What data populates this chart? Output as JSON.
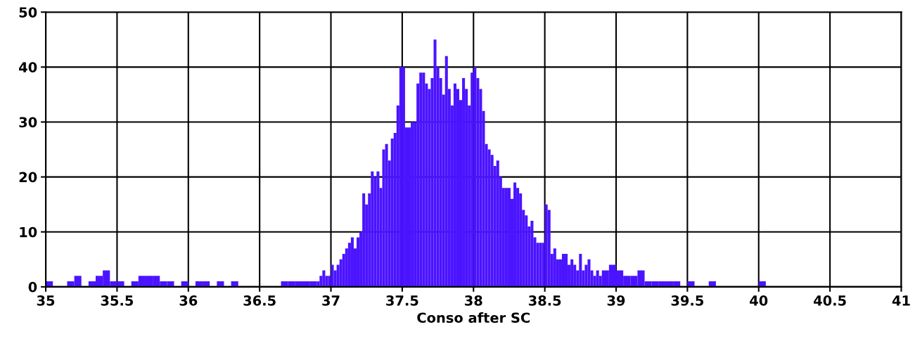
{
  "chart_data": {
    "type": "histogram",
    "xlabel": "Conso after SC",
    "color": "#4b14ff",
    "bins": [
      35,
      35.05,
      35.15,
      35.2,
      35.25,
      35.3,
      35.35,
      35.4,
      35.45,
      35.5,
      35.55,
      35.6,
      35.65,
      35.7,
      35.75,
      35.8,
      35.85,
      35.9,
      35.95,
      36,
      36.05,
      36.1,
      36.15,
      36.2,
      36.25,
      36.3,
      36.35,
      36.65,
      36.7,
      36.75,
      36.8,
      36.85,
      36.9,
      36.92,
      36.94,
      36.96,
      36.98,
      37,
      37.02,
      37.04,
      37.06,
      37.08,
      37.1,
      37.12,
      37.14,
      37.16,
      37.18,
      37.2,
      37.22,
      37.24,
      37.26,
      37.28,
      37.3,
      37.32,
      37.34,
      37.36,
      37.38,
      37.4,
      37.42,
      37.44,
      37.46,
      37.48,
      37.5,
      37.52,
      37.54,
      37.56,
      37.58,
      37.6,
      37.62,
      37.64,
      37.66,
      37.68,
      37.7,
      37.72,
      37.74,
      37.76,
      37.78,
      37.8,
      37.82,
      37.84,
      37.86,
      37.88,
      37.9,
      37.92,
      37.94,
      37.96,
      37.98,
      38,
      38.02,
      38.04,
      38.06,
      38.08,
      38.1,
      38.12,
      38.14,
      38.16,
      38.18,
      38.2,
      38.22,
      38.24,
      38.26,
      38.28,
      38.3,
      38.32,
      38.34,
      38.36,
      38.38,
      38.4,
      38.42,
      38.44,
      38.46,
      38.48,
      38.5,
      38.52,
      38.54,
      38.56,
      38.58,
      38.6,
      38.62,
      38.64,
      38.66,
      38.68,
      38.7,
      38.72,
      38.74,
      38.76,
      38.78,
      38.8,
      38.82,
      38.84,
      38.86,
      38.88,
      38.9,
      38.95,
      39,
      39.05,
      39.1,
      39.15,
      39.2,
      39.25,
      39.3,
      39.35,
      39.4,
      39.45,
      39.5,
      39.55,
      39.65,
      39.7,
      40,
      40.05
    ],
    "values": [
      1,
      0,
      1,
      2,
      0,
      1,
      2,
      3,
      1,
      1,
      0,
      1,
      2,
      2,
      2,
      1,
      1,
      0,
      1,
      0,
      1,
      1,
      0,
      1,
      0,
      1,
      0,
      1,
      1,
      1,
      1,
      1,
      1,
      2,
      3,
      2,
      2,
      4,
      3,
      4,
      5,
      6,
      7,
      8,
      9,
      7,
      9,
      10,
      17,
      15,
      17,
      21,
      20,
      21,
      18,
      25,
      26,
      23,
      27,
      28,
      33,
      40,
      40,
      29,
      29,
      30,
      30,
      37,
      39,
      39,
      37,
      36,
      38,
      45,
      40,
      38,
      35,
      42,
      36,
      33,
      37,
      36,
      34,
      38,
      36,
      33,
      39,
      40,
      38,
      36,
      32,
      26,
      25,
      24,
      22,
      23,
      20,
      18,
      18,
      18,
      16,
      19,
      18,
      17,
      14,
      13,
      11,
      12,
      9,
      8,
      8,
      8,
      15,
      14,
      6,
      7,
      5,
      5,
      6,
      6,
      4,
      5,
      4,
      3,
      6,
      3,
      4,
      5,
      3,
      2,
      3,
      2,
      3,
      4,
      3,
      2,
      2,
      3,
      1,
      1,
      1,
      1,
      1,
      0,
      1,
      0,
      1,
      0,
      1
    ],
    "xlim": [
      35,
      41
    ],
    "xticks": [
      35,
      35.5,
      36,
      36.5,
      37,
      37.5,
      38,
      38.5,
      39,
      39.5,
      40,
      40.5,
      41
    ],
    "ylim": [
      0,
      50
    ],
    "yticks": [
      0,
      10,
      20,
      30,
      40,
      50
    ],
    "grid": true,
    "legend": false
  }
}
